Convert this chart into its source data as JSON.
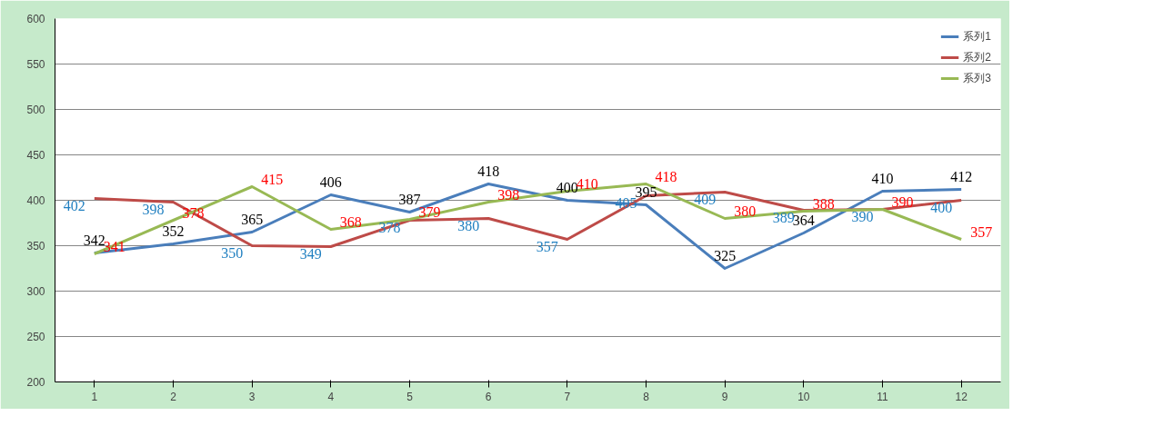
{
  "chart_data": {
    "type": "line",
    "categories": [
      "1",
      "2",
      "3",
      "4",
      "5",
      "6",
      "7",
      "8",
      "9",
      "10",
      "11",
      "12"
    ],
    "series": [
      {
        "name": "系列1",
        "color": "#4a7ebb",
        "values": [
          342,
          352,
          365,
          406,
          387,
          418,
          400,
          395,
          325,
          364,
          410,
          412
        ]
      },
      {
        "name": "系列2",
        "color": "#be4b48",
        "values": [
          402,
          398,
          350,
          349,
          378,
          380,
          357,
          405,
          409,
          389,
          390,
          400
        ]
      },
      {
        "name": "系列3",
        "color": "#98b954",
        "values": [
          341,
          378,
          415,
          368,
          379,
          398,
          410,
          418,
          380,
          388,
          390,
          357
        ]
      }
    ],
    "ylim": [
      200,
      600
    ],
    "yticks": [
      200,
      250,
      300,
      350,
      400,
      450,
      500,
      550,
      600
    ],
    "grid": "y",
    "legend": "top right",
    "data_labels": true,
    "marker": "none",
    "line_style": "solid"
  }
}
